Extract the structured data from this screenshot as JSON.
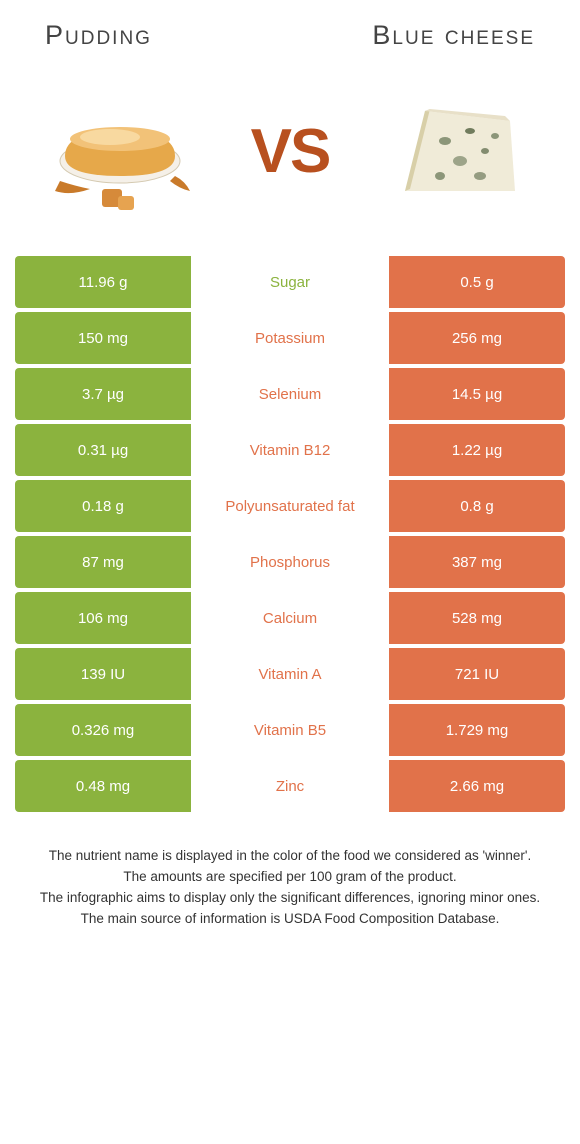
{
  "header": {
    "left_title": "Pudding",
    "right_title": "Blue cheese"
  },
  "vs_text": "VS",
  "colors": {
    "left": "#8bb33e",
    "right": "#e1724a",
    "vs": "#b8501f"
  },
  "rows": [
    {
      "left": "11.96 g",
      "label": "Sugar",
      "right": "0.5 g",
      "winner": "left"
    },
    {
      "left": "150 mg",
      "label": "Potassium",
      "right": "256 mg",
      "winner": "right"
    },
    {
      "left": "3.7 µg",
      "label": "Selenium",
      "right": "14.5 µg",
      "winner": "right"
    },
    {
      "left": "0.31 µg",
      "label": "Vitamin B12",
      "right": "1.22 µg",
      "winner": "right"
    },
    {
      "left": "0.18 g",
      "label": "Polyunsaturated fat",
      "right": "0.8 g",
      "winner": "right"
    },
    {
      "left": "87 mg",
      "label": "Phosphorus",
      "right": "387 mg",
      "winner": "right"
    },
    {
      "left": "106 mg",
      "label": "Calcium",
      "right": "528 mg",
      "winner": "right"
    },
    {
      "left": "139 IU",
      "label": "Vitamin A",
      "right": "721 IU",
      "winner": "right"
    },
    {
      "left": "0.326 mg",
      "label": "Vitamin B5",
      "right": "1.729 mg",
      "winner": "right"
    },
    {
      "left": "0.48 mg",
      "label": "Zinc",
      "right": "2.66 mg",
      "winner": "right"
    }
  ],
  "footer": {
    "line1": "The nutrient name is displayed in the color of the food we considered as 'winner'.",
    "line2": "The amounts are specified per 100 gram of the product.",
    "line3": "The infographic aims to display only the significant differences, ignoring minor ones.",
    "line4": "The main source of information is USDA Food Composition Database."
  }
}
